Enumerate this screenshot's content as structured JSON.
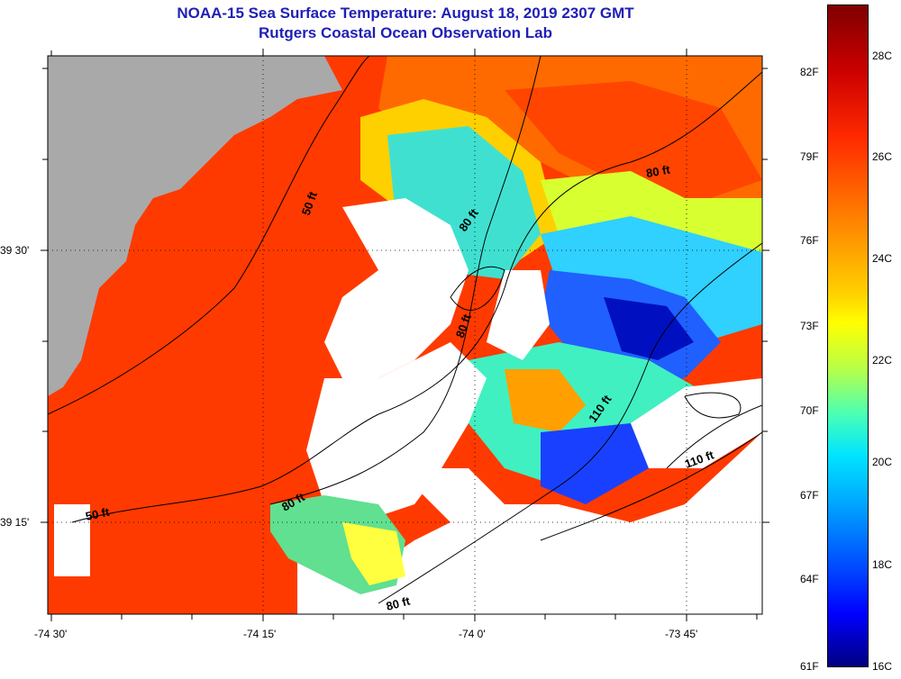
{
  "header": {
    "title": "NOAA-15 Sea Surface Temperature:  August 18, 2019 2307 GMT",
    "subtitle": "Rutgers Coastal Ocean Observation Lab"
  },
  "map": {
    "x_ticks": [
      "-74 30'",
      "-74 15'",
      "-74 0'",
      "-73 45'"
    ],
    "y_ticks": [
      "39 30'",
      "39 15'"
    ],
    "contours": [
      "50 ft",
      "50 ft",
      "80 ft",
      "80 ft",
      "80 ft",
      "80 ft",
      "80 ft",
      "110 ft",
      "110 ft"
    ]
  },
  "colorbar": {
    "fahrenheit": [
      "82F",
      "79F",
      "76F",
      "73F",
      "70F",
      "67F",
      "64F",
      "61F"
    ],
    "celsius": [
      "28C",
      "26C",
      "24C",
      "22C",
      "20C",
      "18C",
      "16C"
    ]
  },
  "colors": {
    "land": "#a9a9a9",
    "no_data": "#ffffff",
    "title": "#1f1fb4"
  }
}
